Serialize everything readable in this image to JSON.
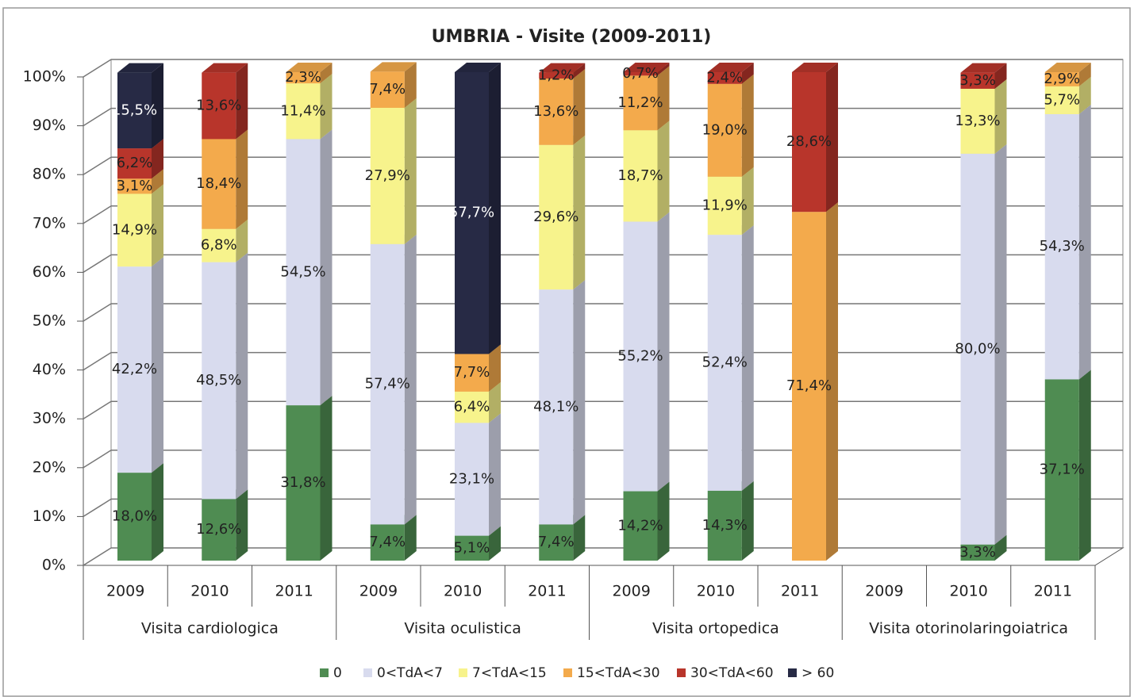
{
  "chart_data": {
    "type": "bar",
    "stacked": true,
    "title": "UMBRIA - Visite (2009-2011)",
    "categories": [
      "2009",
      "2010",
      "2011",
      "2009",
      "2010",
      "2011",
      "2009",
      "2010",
      "2011",
      "2009",
      "2010",
      "2011"
    ],
    "groups": [
      "Visita cardiologica",
      "Visita oculistica",
      "Visita ortopedica",
      "Visita otorinolaringoiatrica"
    ],
    "ylim": [
      0,
      100
    ],
    "yticks": [
      {
        "value": 0,
        "label": "0%"
      },
      {
        "value": 10,
        "label": "10%"
      },
      {
        "value": 20,
        "label": "20%"
      },
      {
        "value": 30,
        "label": "30%"
      },
      {
        "value": 40,
        "label": "40%"
      },
      {
        "value": 50,
        "label": "50%"
      },
      {
        "value": 60,
        "label": "60%"
      },
      {
        "value": 70,
        "label": "70%"
      },
      {
        "value": 80,
        "label": "80%"
      },
      {
        "value": 90,
        "label": "90%"
      },
      {
        "value": 100,
        "label": "100%"
      }
    ],
    "grid": true,
    "legend": "bottom",
    "series": [
      {
        "name": "0",
        "color": "#4f8c52",
        "values": [
          18.0,
          12.6,
          31.8,
          7.4,
          5.1,
          7.4,
          14.2,
          14.3,
          null,
          null,
          3.3,
          37.1
        ],
        "value_labels": [
          "18,0%",
          "12,6%",
          "31,8%",
          "7,4%",
          "5,1%",
          "7,4%",
          "14,2%",
          "14,3%",
          null,
          null,
          "3,3%",
          "37,1%"
        ]
      },
      {
        "name": "0<TdA<7",
        "color": "#d8dbee",
        "values": [
          42.2,
          48.5,
          54.5,
          57.4,
          23.1,
          48.1,
          55.2,
          52.4,
          null,
          null,
          80.0,
          54.3
        ],
        "value_labels": [
          "42,2%",
          "48,5%",
          "54,5%",
          "57,4%",
          "23,1%",
          "48,1%",
          "55,2%",
          "52,4%",
          null,
          null,
          "80,0%",
          "54,3%"
        ]
      },
      {
        "name": "7<TdA<15",
        "color": "#f7f38c",
        "values": [
          14.9,
          6.8,
          11.4,
          27.9,
          6.4,
          29.6,
          18.7,
          11.9,
          null,
          null,
          13.3,
          5.7
        ],
        "value_labels": [
          "14,9%",
          "6,8%",
          "11,4%",
          "27,9%",
          "6,4%",
          "29,6%",
          "18,7%",
          "11,9%",
          null,
          null,
          "13,3%",
          "5,7%"
        ]
      },
      {
        "name": "15<TdA<30",
        "color": "#f3aa4c",
        "values": [
          3.1,
          18.4,
          2.3,
          7.4,
          7.7,
          13.6,
          11.2,
          19.0,
          71.4,
          null,
          null,
          2.9
        ],
        "value_labels": [
          "3,1%",
          "18,4%",
          "2,3%",
          "7,4%",
          "7,7%",
          "13,6%",
          "11,2%",
          "19,0%",
          "71,4%",
          null,
          null,
          "2,9%"
        ]
      },
      {
        "name": "30<TdA<60",
        "color": "#b8352b",
        "values": [
          6.2,
          13.6,
          null,
          null,
          null,
          1.2,
          0.7,
          2.4,
          28.6,
          null,
          3.3,
          null
        ],
        "value_labels": [
          "6,2%",
          "13,6%",
          null,
          null,
          null,
          "1,2%",
          "0,7%",
          "2,4%",
          "28,6%",
          null,
          "3,3%",
          null
        ]
      },
      {
        "name": "> 60",
        "color": "#272a45",
        "values": [
          15.5,
          null,
          null,
          null,
          57.7,
          null,
          null,
          null,
          null,
          null,
          null,
          null
        ],
        "value_labels": [
          "15,5%",
          null,
          null,
          null,
          "57,7%",
          null,
          null,
          null,
          null,
          null,
          null,
          null
        ]
      }
    ]
  }
}
